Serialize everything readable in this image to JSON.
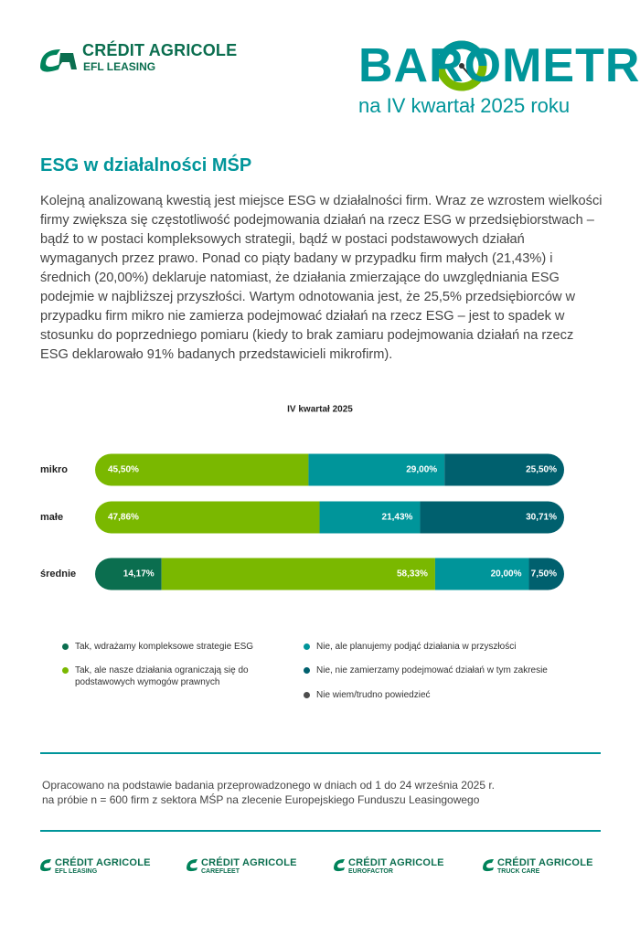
{
  "header": {
    "brand": "CRÉDIT AGRICOLE",
    "subbrand": "EFL LEASING",
    "barometer": "BAROMETR",
    "period": "na IV kwartał 2025 roku"
  },
  "section": {
    "title": "ESG w działalności MŚP",
    "paragraph": "Kolejną analizowaną kwestią jest miejsce ESG w działalności firm. Wraz ze wzrostem wielkości firmy zwiększa się częstotliwość podejmowania działań na rzecz ESG w przedsiębiorstwach – bądź to w postaci kompleksowych strategii, bądź w postaci podstawowych działań wymaganych przez prawo. Ponad co piąty badany w przypadku firm małych (21,43%) i średnich (20,00%) deklaruje natomiast, że działania zmierzające do uwzględniania ESG podejmie w najbliższej przyszłości. Wartym odnotowania jest, że 25,5% przedsiębiorców w przypadku firm mikro nie zamierza podejmować działań na rzecz ESG – jest to spadek w stosunku do poprzedniego pomiaru (kiedy to brak zamiaru podejmowania działań na rzecz ESG deklarowało 91% badanych przedstawicieli mikrofirm)."
  },
  "chart_data": {
    "type": "bar",
    "orientation": "horizontal",
    "stacked": true,
    "title": "IV kwartał 2025",
    "categories": [
      "mikro",
      "małe",
      "średnie"
    ],
    "xlim": [
      0,
      100
    ],
    "series": [
      {
        "name": "Tak, wdrażamy kompleksowe strategie ESG",
        "color": "#0b6e4f",
        "values": [
          null,
          null,
          14.17
        ],
        "value_labels": [
          null,
          null,
          "14,17%"
        ]
      },
      {
        "name": "Tak, ale nasze działania ograniczają się do podstawowych wymogów prawnych",
        "color": "#7ab800",
        "values": [
          45.5,
          47.86,
          58.33
        ],
        "value_labels": [
          "45,50%",
          "47,86%",
          "58,33%"
        ]
      },
      {
        "name": "Nie, ale planujemy podjąć działania w przyszłości",
        "color": "#00959a",
        "values": [
          29.0,
          21.43,
          20.0
        ],
        "value_labels": [
          "29,00%",
          "21,43%",
          "20,00%"
        ]
      },
      {
        "name": "Nie, nie zamierzamy podejmować działań w tym zakresie",
        "color": "#00606e",
        "values": [
          25.5,
          30.71,
          7.5
        ],
        "value_labels": [
          "25,50%",
          "30,71%",
          "7,50%"
        ]
      },
      {
        "name": "Nie wiem/trudno powiedzieć",
        "color": "#4d4d4d",
        "values": [
          null,
          null,
          null
        ],
        "value_labels": [
          null,
          null,
          null
        ]
      }
    ]
  },
  "footnote": [
    "Opracowano na podstawie badania przeprowadzonego w dniach od 1 do 24 września 2025 r.",
    "na próbie n = 600 firm z sektora MŚP na zlecenie Europejskiego Funduszu Leasingowego"
  ],
  "footer_logos": [
    {
      "brand": "CRÉDIT AGRICOLE",
      "subbrand": "EFL LEASING"
    },
    {
      "brand": "CRÉDIT AGRICOLE",
      "subbrand": "CAREFLEET"
    },
    {
      "brand": "CRÉDIT AGRICOLE",
      "subbrand": "EUROFACTOR"
    },
    {
      "brand": "CRÉDIT AGRICOLE",
      "subbrand": "TRUCK CARE"
    }
  ]
}
